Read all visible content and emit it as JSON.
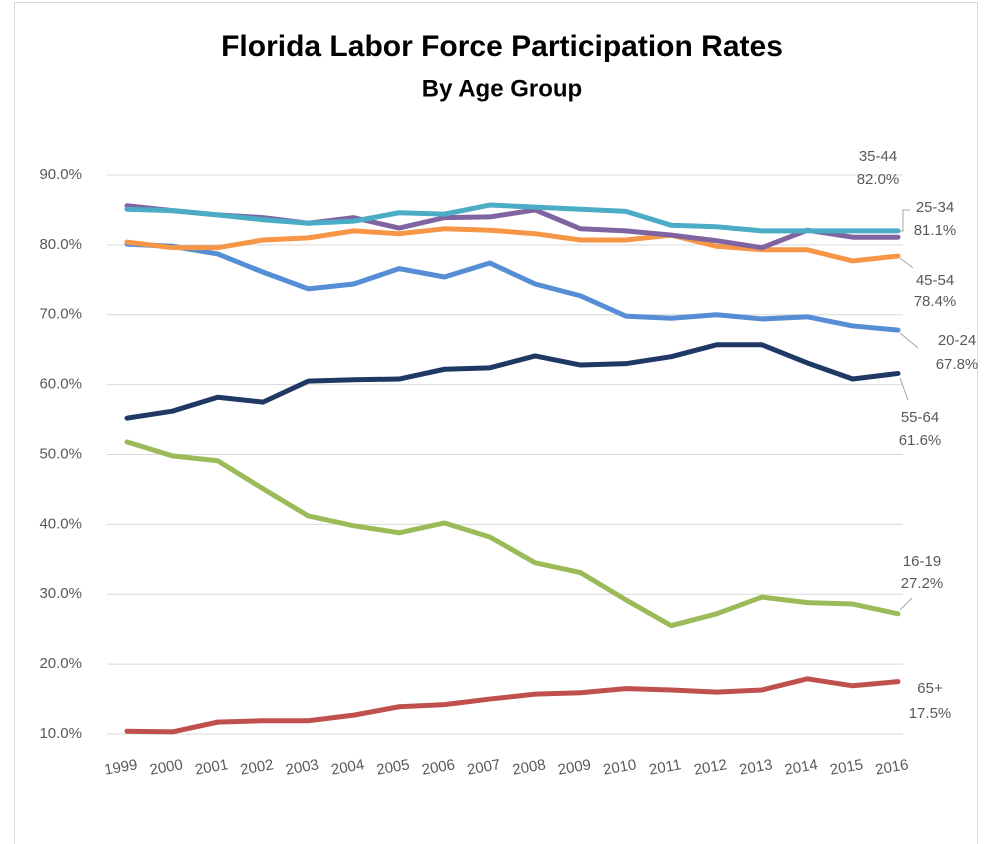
{
  "chart_data": {
    "type": "line",
    "title": "Florida Labor Force Participation Rates",
    "subtitle": "By Age Group",
    "categories": [
      "1999",
      "2000",
      "2001",
      "2002",
      "2003",
      "2004",
      "2005",
      "2006",
      "2007",
      "2008",
      "2009",
      "2010",
      "2011",
      "2012",
      "2013",
      "2014",
      "2015",
      "2016"
    ],
    "ylim": [
      10,
      90
    ],
    "yticks": [
      {
        "value": 10,
        "label": "10.0%"
      },
      {
        "value": 20,
        "label": "20.0%"
      },
      {
        "value": 30,
        "label": "30.0%"
      },
      {
        "value": 40,
        "label": "40.0%"
      },
      {
        "value": 50,
        "label": "50.0%"
      },
      {
        "value": 60,
        "label": "60.0%"
      },
      {
        "value": 70,
        "label": "70.0%"
      },
      {
        "value": 80,
        "label": "80.0%"
      },
      {
        "value": 90,
        "label": "90.0%"
      }
    ],
    "grid": true,
    "series": [
      {
        "name": "35-44",
        "color": "#4bacc6",
        "values": [
          85.1,
          84.9,
          84.3,
          83.6,
          83.1,
          83.4,
          84.6,
          84.4,
          85.7,
          85.4,
          85.1,
          84.8,
          82.8,
          82.6,
          82.0,
          82.0,
          82.0,
          82.0
        ],
        "value_labels": [
          null,
          null,
          null,
          null,
          null,
          null,
          null,
          null,
          null,
          null,
          null,
          null,
          null,
          null,
          null,
          null,
          null,
          "82.0%"
        ]
      },
      {
        "name": "25-34",
        "color": "#8064a2",
        "values": [
          85.6,
          84.9,
          84.3,
          83.9,
          83.1,
          83.9,
          82.4,
          83.9,
          84.0,
          85.0,
          82.3,
          82.0,
          81.4,
          80.6,
          79.6,
          82.1,
          81.1,
          81.1
        ],
        "value_labels": [
          null,
          null,
          null,
          null,
          null,
          null,
          null,
          null,
          null,
          null,
          null,
          null,
          null,
          null,
          null,
          null,
          null,
          "81.1%"
        ]
      },
      {
        "name": "45-54",
        "color": "#f79646",
        "values": [
          80.4,
          79.6,
          79.6,
          80.7,
          81.0,
          82.0,
          81.6,
          82.3,
          82.1,
          81.6,
          80.7,
          80.7,
          81.4,
          79.8,
          79.3,
          79.3,
          77.7,
          78.4
        ],
        "value_labels": [
          null,
          null,
          null,
          null,
          null,
          null,
          null,
          null,
          null,
          null,
          null,
          null,
          null,
          null,
          null,
          null,
          null,
          "78.4%"
        ]
      },
      {
        "name": "20-24",
        "color": "#558ed5",
        "values": [
          80.1,
          79.8,
          78.7,
          76.1,
          73.7,
          74.4,
          76.6,
          75.4,
          77.4,
          74.4,
          72.7,
          69.8,
          69.5,
          70.0,
          69.4,
          69.7,
          68.4,
          67.8
        ],
        "value_labels": [
          null,
          null,
          null,
          null,
          null,
          null,
          null,
          null,
          null,
          null,
          null,
          null,
          null,
          null,
          null,
          null,
          null,
          "67.8%"
        ]
      },
      {
        "name": "55-64",
        "color": "#1f3864",
        "values": [
          55.2,
          56.2,
          58.2,
          57.5,
          60.5,
          60.7,
          60.8,
          62.2,
          62.4,
          64.1,
          62.8,
          63.0,
          64.0,
          65.7,
          65.7,
          63.1,
          60.8,
          61.6
        ],
        "value_labels": [
          null,
          null,
          null,
          null,
          null,
          null,
          null,
          null,
          null,
          null,
          null,
          null,
          null,
          null,
          null,
          null,
          null,
          "61.6%"
        ]
      },
      {
        "name": "16-19",
        "color": "#9bbb59",
        "values": [
          51.8,
          49.8,
          49.1,
          45.1,
          41.2,
          39.8,
          38.8,
          40.2,
          38.2,
          34.5,
          33.1,
          29.2,
          25.5,
          27.2,
          29.6,
          28.8,
          28.6,
          27.2
        ],
        "value_labels": [
          null,
          null,
          null,
          null,
          null,
          null,
          null,
          null,
          null,
          null,
          null,
          null,
          null,
          null,
          null,
          null,
          null,
          "27.2%"
        ]
      },
      {
        "name": "65+",
        "color": "#c0504d",
        "values": [
          10.4,
          10.3,
          11.7,
          11.9,
          11.9,
          12.7,
          13.9,
          14.2,
          15.0,
          15.7,
          15.9,
          16.5,
          16.3,
          16.0,
          16.3,
          17.9,
          16.9,
          17.5
        ],
        "value_labels": [
          null,
          null,
          null,
          null,
          null,
          null,
          null,
          null,
          null,
          null,
          null,
          null,
          null,
          null,
          null,
          null,
          null,
          "17.5%"
        ]
      }
    ]
  }
}
